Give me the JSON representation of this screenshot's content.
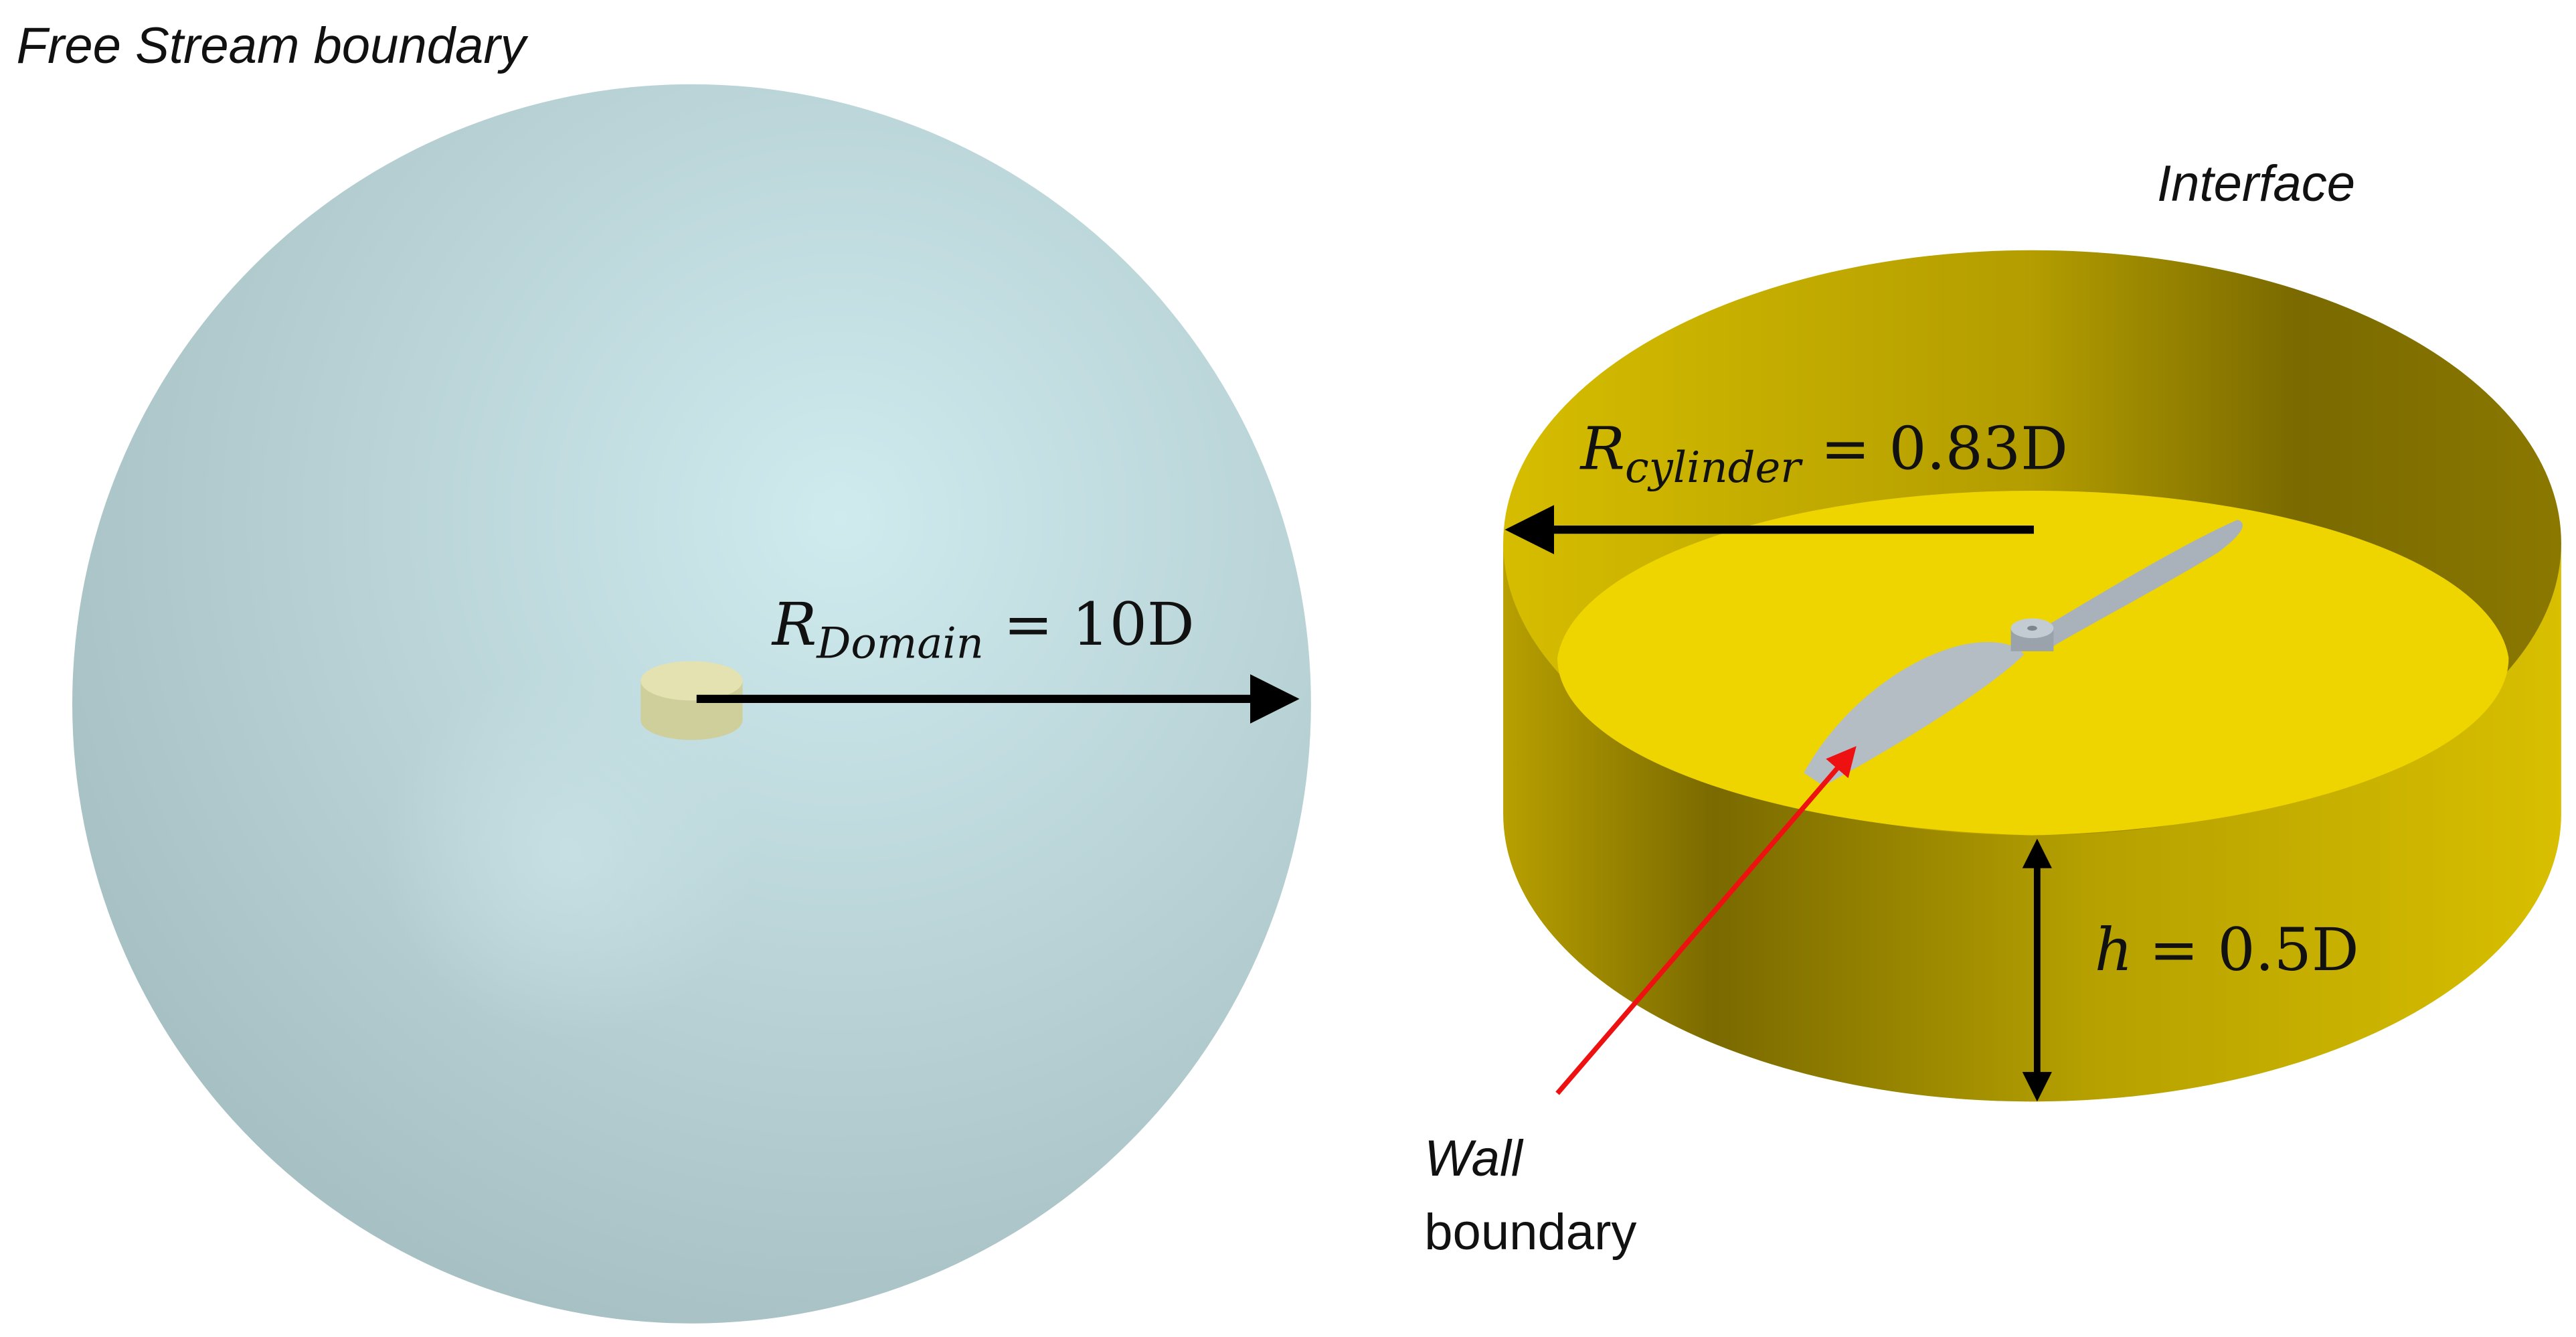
{
  "labels": {
    "free_stream": "Free Stream boundary",
    "interface": "Interface",
    "wall_line1": "Wall",
    "wall_line2": "boundary"
  },
  "annotations": {
    "r_domain": {
      "symbol": "R",
      "subscript": "Domain",
      "rhs": "= 10D"
    },
    "r_cylinder": {
      "symbol": "R",
      "subscript": "cylinder",
      "rhs": "= 0.83D"
    },
    "height": {
      "symbol": "h",
      "rhs": "= 0.5D"
    }
  },
  "colors": {
    "sphere": "#b9d3d7",
    "sphere_highlight": "#d0ecef",
    "cylinder_light": "#d2b900",
    "cylinder_dark": "#766600",
    "cylinder_floor": "#efd500",
    "propeller": "#b4bcc4",
    "pointer": "#ee1111",
    "arrow": "#000000"
  }
}
